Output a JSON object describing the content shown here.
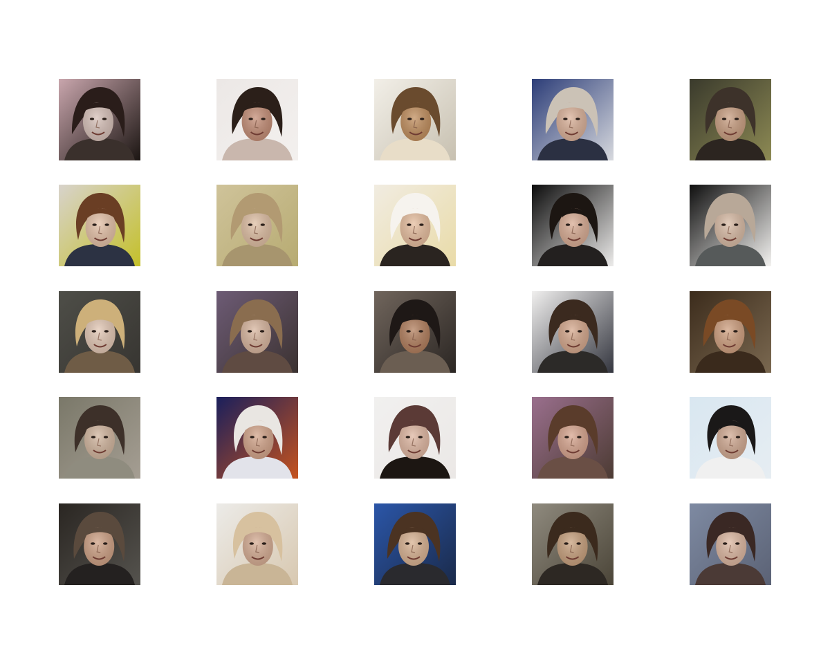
{
  "figure": {
    "rows": 5,
    "columns": 5,
    "samples": [
      {
        "bg1": "#c9a6ad",
        "bg2": "#1b1512",
        "skin": "#d8c2ba",
        "hair": "#2a1d1a",
        "shirt": "#3a302c"
      },
      {
        "bg1": "#ece8e6",
        "bg2": "#f3f0ee",
        "skin": "#c58f78",
        "hair": "#2b1f19",
        "shirt": "#c9b7ad"
      },
      {
        "bg1": "#f2efe8",
        "bg2": "#c7c0b0",
        "skin": "#c29060",
        "hair": "#6a4b2e",
        "shirt": "#e8ddc8"
      },
      {
        "bg1": "#2c3d78",
        "bg2": "#d7d9de",
        "skin": "#dbb29a",
        "hair": "#cbc2b6",
        "shirt": "#2b3042"
      },
      {
        "bg1": "#3a3a2c",
        "bg2": "#8d8a54",
        "skin": "#caa083",
        "hair": "#3d322a",
        "shirt": "#2c2520"
      },
      {
        "bg1": "#d8d3cc",
        "bg2": "#c4c02a",
        "skin": "#e5c2a8",
        "hair": "#6a3e24",
        "shirt": "#2c3243"
      },
      {
        "bg1": "#cfc39a",
        "bg2": "#b7ab72",
        "skin": "#e0c0a5",
        "hair": "#b29a72",
        "shirt": "#a7956e"
      },
      {
        "bg1": "#f1ece1",
        "bg2": "#e9dba8",
        "skin": "#e7bfa0",
        "hair": "#f6f3ee",
        "shirt": "#2a2420"
      },
      {
        "bg1": "#0c0c0c",
        "bg2": "#ecebea",
        "skin": "#d9ad95",
        "hair": "#1c1612",
        "shirt": "#23201f"
      },
      {
        "bg1": "#0f0f0f",
        "bg2": "#f3f2f0",
        "skin": "#d9bca6",
        "hair": "#b8a898",
        "shirt": "#565a5a"
      },
      {
        "bg1": "#4e4e48",
        "bg2": "#373531",
        "skin": "#e4c9b6",
        "hair": "#cdb07a",
        "shirt": "#6f5c46"
      },
      {
        "bg1": "#6d5b75",
        "bg2": "#3b3231",
        "skin": "#d9b7a0",
        "hair": "#8a6d4f",
        "shirt": "#5f4b42"
      },
      {
        "bg1": "#70655c",
        "bg2": "#2b2623",
        "skin": "#b3805f",
        "hair": "#1e1816",
        "shirt": "#6b5e52"
      },
      {
        "bg1": "#f0efee",
        "bg2": "#34363f",
        "skin": "#d6a98e",
        "hair": "#3b2a1f",
        "shirt": "#2c2a28"
      },
      {
        "bg1": "#3c2c1c",
        "bg2": "#7a6850",
        "skin": "#d0a181",
        "hair": "#7a4a25",
        "shirt": "#3a2a1c"
      },
      {
        "bg1": "#7a7869",
        "bg2": "#a59e93",
        "skin": "#d3b7a0",
        "hair": "#3d3029",
        "shirt": "#8f8c7f"
      },
      {
        "bg1": "#1a1f5c",
        "bg2": "#c5531e",
        "skin": "#d4a68c",
        "hair": "#e9e6e2",
        "shirt": "#e2e3ea"
      },
      {
        "bg1": "#f1f0ef",
        "bg2": "#ebe8e6",
        "skin": "#e0b8a3",
        "hair": "#5b3a36",
        "shirt": "#1c1612"
      },
      {
        "bg1": "#9a6f8d",
        "bg2": "#4c3b33",
        "skin": "#d8a690",
        "hair": "#5a3c2b",
        "shirt": "#6a4f45"
      },
      {
        "bg1": "#d9e7f1",
        "bg2": "#e6edf2",
        "skin": "#d2ab94",
        "hair": "#1a1818",
        "shirt": "#f0f0f0"
      },
      {
        "bg1": "#2a2622",
        "bg2": "#55534e",
        "skin": "#cfa286",
        "hair": "#5a4a3d",
        "shirt": "#242120"
      },
      {
        "bg1": "#ecebe8",
        "bg2": "#d8c8b0",
        "skin": "#d7ae95",
        "hair": "#d7c19f",
        "shirt": "#c9b596"
      },
      {
        "bg1": "#2b56a8",
        "bg2": "#1a2a4a",
        "skin": "#d9b393",
        "hair": "#4b3322",
        "shirt": "#2a2a2e"
      },
      {
        "bg1": "#8f8a7e",
        "bg2": "#4b4538",
        "skin": "#c9a27f",
        "hair": "#3b2a1d",
        "shirt": "#2d2823"
      },
      {
        "bg1": "#7e8aa2",
        "bg2": "#5b6275",
        "skin": "#ddb8a2",
        "hair": "#3a2824",
        "shirt": "#4b3a36"
      }
    ]
  }
}
